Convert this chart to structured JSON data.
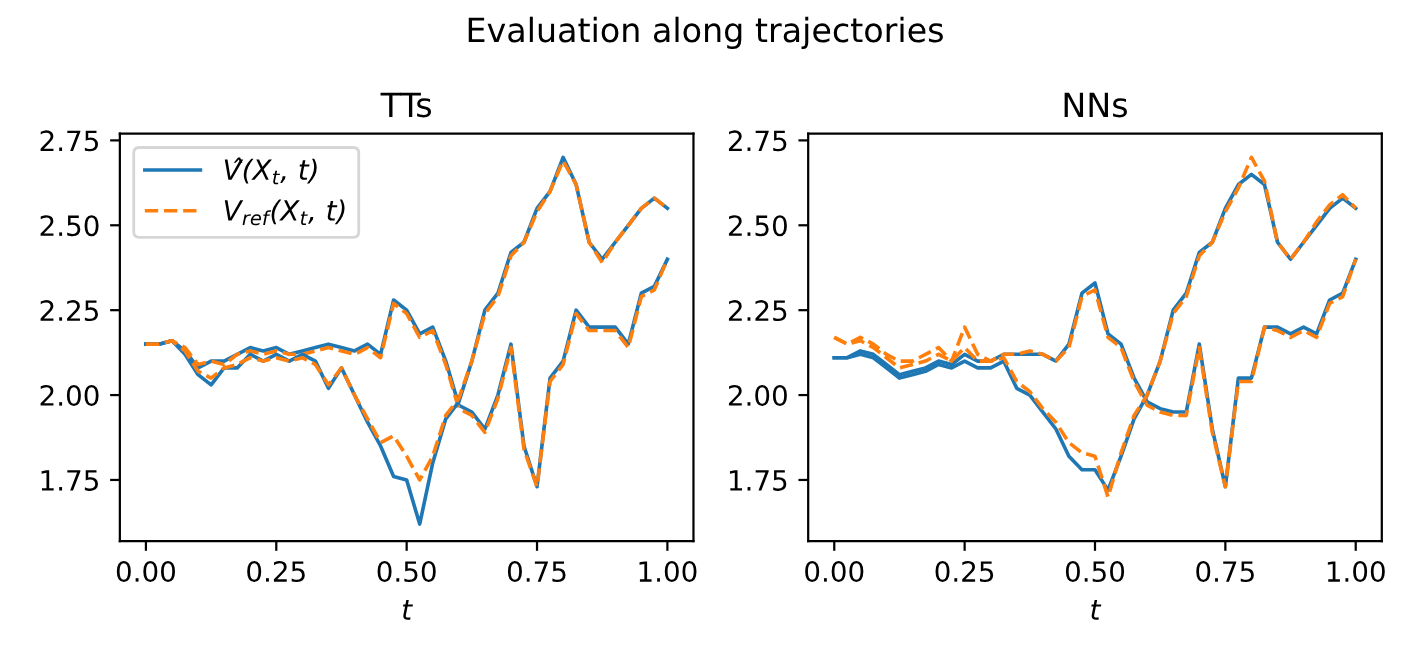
{
  "chart_data": [
    {
      "type": "line",
      "title": "TTs",
      "xlabel": "t",
      "legend": "top left",
      "annotations": [
        "Evaluation along trajectories"
      ],
      "x": [
        0,
        0.025,
        0.05,
        0.075,
        0.1,
        0.125,
        0.15,
        0.175,
        0.2,
        0.225,
        0.25,
        0.275,
        0.3,
        0.325,
        0.35,
        0.375,
        0.4,
        0.425,
        0.45,
        0.475,
        0.5,
        0.525,
        0.55,
        0.575,
        0.6,
        0.625,
        0.65,
        0.675,
        0.7,
        0.725,
        0.75,
        0.775,
        0.8,
        0.825,
        0.85,
        0.875,
        0.9,
        0.925,
        0.95,
        0.975,
        1.0
      ],
      "xlim": [
        -0.05,
        1.05
      ],
      "xticks": [
        {
          "value": 0,
          "label": "0.00"
        },
        {
          "value": 0.25,
          "label": "0.25"
        },
        {
          "value": 0.5,
          "label": "0.50"
        },
        {
          "value": 0.75,
          "label": "0.75"
        },
        {
          "value": 1,
          "label": "1.00"
        }
      ],
      "ylim": [
        1.57,
        2.77
      ],
      "yticks": [
        {
          "value": 1.75,
          "label": "1.75"
        },
        {
          "value": 2,
          "label": "2.00"
        },
        {
          "value": 2.25,
          "label": "2.25"
        },
        {
          "value": 2.5,
          "label": "2.50"
        },
        {
          "value": 2.75,
          "label": "2.75"
        }
      ],
      "series": [
        {
          "name": "V̂(X$_{t}$, t)",
          "color": "#1f77b4",
          "line_style": "solid",
          "values": [
            2.15,
            2.15,
            2.16,
            2.13,
            2.08,
            2.1,
            2.1,
            2.12,
            2.14,
            2.13,
            2.14,
            2.12,
            2.13,
            2.14,
            2.15,
            2.14,
            2.13,
            2.15,
            2.12,
            2.28,
            2.25,
            2.18,
            2.2,
            2.1,
            1.97,
            1.95,
            1.9,
            2.0,
            2.15,
            1.85,
            1.73,
            2.05,
            2.1,
            2.25,
            2.2,
            2.2,
            2.2,
            2.15,
            2.3,
            2.32,
            2.4
          ]
        },
        {
          "name": "V$_{ref}$(X$_{t}$, t)",
          "color": "#ff7f0e",
          "line_style": "dashed",
          "values": [
            2.15,
            2.15,
            2.16,
            2.14,
            2.09,
            2.1,
            2.09,
            2.12,
            2.13,
            2.12,
            2.13,
            2.12,
            2.12,
            2.13,
            2.14,
            2.13,
            2.12,
            2.14,
            2.11,
            2.27,
            2.24,
            2.17,
            2.19,
            2.09,
            1.96,
            1.94,
            1.89,
            1.99,
            2.14,
            1.84,
            1.73,
            2.04,
            2.09,
            2.24,
            2.19,
            2.19,
            2.19,
            2.14,
            2.29,
            2.31,
            2.4
          ]
        },
        {
          "color": "#1f77b4",
          "line_style": "solid",
          "values": [
            2.15,
            2.15,
            2.16,
            2.12,
            2.06,
            2.03,
            2.08,
            2.08,
            2.12,
            2.1,
            2.12,
            2.1,
            2.12,
            2.1,
            2.02,
            2.08,
            2.0,
            1.92,
            1.85,
            1.76,
            1.75,
            1.62,
            1.8,
            1.93,
            1.98,
            2.1,
            2.25,
            2.3,
            2.42,
            2.45,
            2.55,
            2.6,
            2.7,
            2.62,
            2.45,
            2.4,
            2.45,
            2.5,
            2.55,
            2.58,
            2.55
          ]
        },
        {
          "color": "#ff7f0e",
          "line_style": "dashed",
          "values": [
            2.15,
            2.15,
            2.16,
            2.13,
            2.07,
            2.05,
            2.08,
            2.09,
            2.11,
            2.1,
            2.11,
            2.1,
            2.11,
            2.09,
            2.03,
            2.08,
            2.0,
            1.93,
            1.86,
            1.88,
            1.82,
            1.75,
            1.82,
            1.94,
            1.99,
            2.1,
            2.24,
            2.29,
            2.41,
            2.45,
            2.54,
            2.6,
            2.69,
            2.62,
            2.45,
            2.39,
            2.45,
            2.5,
            2.55,
            2.58,
            2.55
          ]
        }
      ]
    },
    {
      "type": "line",
      "title": "NNs",
      "xlabel": "t",
      "x": [
        0,
        0.025,
        0.05,
        0.075,
        0.1,
        0.125,
        0.15,
        0.175,
        0.2,
        0.225,
        0.25,
        0.275,
        0.3,
        0.325,
        0.35,
        0.375,
        0.4,
        0.425,
        0.45,
        0.475,
        0.5,
        0.525,
        0.55,
        0.575,
        0.6,
        0.625,
        0.65,
        0.675,
        0.7,
        0.725,
        0.75,
        0.775,
        0.8,
        0.825,
        0.85,
        0.875,
        0.9,
        0.925,
        0.95,
        0.975,
        1.0
      ],
      "xlim": [
        -0.05,
        1.05
      ],
      "xticks": [
        {
          "value": 0,
          "label": "0.00"
        },
        {
          "value": 0.25,
          "label": "0.25"
        },
        {
          "value": 0.5,
          "label": "0.50"
        },
        {
          "value": 0.75,
          "label": "0.75"
        },
        {
          "value": 1,
          "label": "1.00"
        }
      ],
      "ylim": [
        1.57,
        2.77
      ],
      "yticks": [
        {
          "value": 1.75,
          "label": "1.75"
        },
        {
          "value": 2,
          "label": "2.00"
        },
        {
          "value": 2.25,
          "label": "2.25"
        },
        {
          "value": 2.5,
          "label": "2.50"
        },
        {
          "value": 2.75,
          "label": "2.75"
        }
      ],
      "series": [
        {
          "color": "#1f77b4",
          "line_style": "solid",
          "values": [
            2.11,
            2.11,
            2.13,
            2.12,
            2.09,
            2.06,
            2.07,
            2.08,
            2.1,
            2.09,
            2.12,
            2.1,
            2.1,
            2.12,
            2.12,
            2.12,
            2.12,
            2.1,
            2.15,
            2.3,
            2.33,
            2.18,
            2.15,
            2.05,
            1.98,
            1.96,
            1.95,
            1.95,
            2.15,
            1.9,
            1.73,
            2.05,
            2.05,
            2.2,
            2.2,
            2.18,
            2.2,
            2.18,
            2.28,
            2.3,
            2.4
          ]
        },
        {
          "color": "#ff7f0e",
          "line_style": "dashed",
          "values": [
            2.17,
            2.15,
            2.17,
            2.15,
            2.12,
            2.1,
            2.1,
            2.12,
            2.14,
            2.1,
            2.2,
            2.12,
            2.1,
            2.12,
            2.12,
            2.13,
            2.12,
            2.1,
            2.14,
            2.29,
            2.31,
            2.17,
            2.14,
            2.04,
            1.97,
            1.95,
            1.94,
            1.94,
            2.14,
            1.89,
            1.73,
            2.04,
            2.04,
            2.2,
            2.19,
            2.17,
            2.19,
            2.17,
            2.27,
            2.29,
            2.4
          ]
        },
        {
          "color": "#1f77b4",
          "line_style": "solid",
          "values": [
            2.11,
            2.11,
            2.12,
            2.11,
            2.08,
            2.05,
            2.06,
            2.07,
            2.09,
            2.08,
            2.1,
            2.08,
            2.08,
            2.1,
            2.02,
            2.0,
            1.95,
            1.9,
            1.82,
            1.78,
            1.78,
            1.72,
            1.82,
            1.93,
            2.0,
            2.1,
            2.25,
            2.3,
            2.42,
            2.45,
            2.55,
            2.62,
            2.65,
            2.62,
            2.45,
            2.4,
            2.45,
            2.5,
            2.55,
            2.58,
            2.55
          ]
        },
        {
          "color": "#ff7f0e",
          "line_style": "dashed",
          "values": [
            2.17,
            2.15,
            2.16,
            2.14,
            2.11,
            2.08,
            2.09,
            2.1,
            2.12,
            2.1,
            2.14,
            2.1,
            2.1,
            2.11,
            2.04,
            2.01,
            1.96,
            1.92,
            1.86,
            1.83,
            1.82,
            1.7,
            1.83,
            1.94,
            2.0,
            2.1,
            2.24,
            2.29,
            2.41,
            2.45,
            2.54,
            2.61,
            2.7,
            2.63,
            2.45,
            2.4,
            2.45,
            2.51,
            2.56,
            2.59,
            2.55
          ]
        }
      ]
    }
  ]
}
